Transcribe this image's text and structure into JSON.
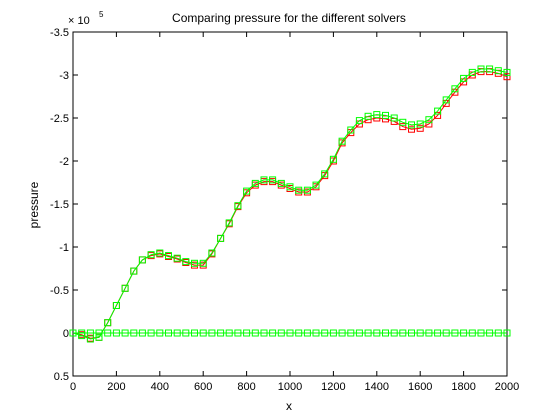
{
  "chart_data": {
    "type": "line",
    "title": "Comparing pressure for the different solvers",
    "xlabel": "x",
    "ylabel": "pressure",
    "xlim": [
      0,
      2000
    ],
    "ylim": [
      -3.5,
      0.5
    ],
    "y_reversed": true,
    "y_multiplier_label": "× 10",
    "y_multiplier_exponent": "5",
    "x_ticks": [
      0,
      200,
      400,
      600,
      800,
      1000,
      1200,
      1400,
      1600,
      1800,
      2000
    ],
    "x_tick_labels": [
      "0",
      "200",
      "400",
      "600",
      "800",
      "1000",
      "1200",
      "1400",
      "1600",
      "1800",
      "2000"
    ],
    "y_ticks": [
      -3.5,
      -3,
      -2.5,
      -2,
      -1.5,
      -1,
      -0.5,
      0,
      0.5
    ],
    "y_tick_labels": [
      "-3.5",
      "-3",
      "-2.5",
      "-2",
      "-1.5",
      "-1",
      "-0.5",
      "0",
      "0.5"
    ],
    "grid": false,
    "legend": "none",
    "colors": {
      "series_a": "#ff0000",
      "series_b": "#00ff00",
      "zero_line": "#00ff00",
      "axis": "#000000"
    },
    "series": [
      {
        "color": "#ff0000",
        "marker": "square",
        "x": [
          0,
          40,
          80,
          120,
          160,
          200,
          240,
          280,
          320,
          360,
          400,
          440,
          480,
          520,
          560,
          600,
          640,
          680,
          720,
          760,
          800,
          840,
          880,
          920,
          960,
          1000,
          1040,
          1080,
          1120,
          1160,
          1200,
          1240,
          1280,
          1320,
          1360,
          1400,
          1440,
          1480,
          1520,
          1560,
          1600,
          1640,
          1680,
          1720,
          1760,
          1800,
          1840,
          1880,
          1920,
          1960,
          2000
        ],
        "y": [
          0,
          0.02,
          0.06,
          0.05,
          -0.12,
          -0.32,
          -0.52,
          -0.72,
          -0.85,
          -0.9,
          -0.92,
          -0.89,
          -0.86,
          -0.82,
          -0.79,
          -0.79,
          -0.92,
          -1.1,
          -1.27,
          -1.47,
          -1.63,
          -1.72,
          -1.76,
          -1.76,
          -1.72,
          -1.68,
          -1.64,
          -1.64,
          -1.7,
          -1.83,
          -2.0,
          -2.21,
          -2.33,
          -2.43,
          -2.48,
          -2.5,
          -2.49,
          -2.46,
          -2.4,
          -2.37,
          -2.38,
          -2.43,
          -2.53,
          -2.67,
          -2.8,
          -2.92,
          -3.0,
          -3.04,
          -3.04,
          -3.02,
          -2.98
        ]
      },
      {
        "color": "#00ff00",
        "marker": "square",
        "x": [
          0,
          40,
          80,
          120,
          160,
          200,
          240,
          280,
          320,
          360,
          400,
          440,
          480,
          520,
          560,
          600,
          640,
          680,
          720,
          760,
          800,
          840,
          880,
          920,
          960,
          1000,
          1040,
          1080,
          1120,
          1160,
          1200,
          1240,
          1280,
          1320,
          1360,
          1400,
          1440,
          1480,
          1520,
          1560,
          1600,
          1640,
          1680,
          1720,
          1760,
          1800,
          1840,
          1880,
          1920,
          1960,
          2000
        ],
        "y": [
          0,
          0.03,
          0.07,
          0.05,
          -0.12,
          -0.32,
          -0.52,
          -0.72,
          -0.85,
          -0.91,
          -0.93,
          -0.9,
          -0.87,
          -0.83,
          -0.81,
          -0.81,
          -0.93,
          -1.1,
          -1.28,
          -1.48,
          -1.65,
          -1.74,
          -1.78,
          -1.78,
          -1.74,
          -1.7,
          -1.66,
          -1.66,
          -1.72,
          -1.85,
          -2.02,
          -2.23,
          -2.36,
          -2.47,
          -2.52,
          -2.54,
          -2.53,
          -2.5,
          -2.45,
          -2.42,
          -2.43,
          -2.48,
          -2.58,
          -2.71,
          -2.84,
          -2.96,
          -3.03,
          -3.07,
          -3.07,
          -3.05,
          -3.03
        ]
      },
      {
        "color": "#00ff00",
        "marker": "square",
        "x": [
          0,
          40,
          80,
          120,
          160,
          200,
          240,
          280,
          320,
          360,
          400,
          440,
          480,
          520,
          560,
          600,
          640,
          680,
          720,
          760,
          800,
          840,
          880,
          920,
          960,
          1000,
          1040,
          1080,
          1120,
          1160,
          1200,
          1240,
          1280,
          1320,
          1360,
          1400,
          1440,
          1480,
          1520,
          1560,
          1600,
          1640,
          1680,
          1720,
          1760,
          1800,
          1840,
          1880,
          1920,
          1960,
          2000
        ],
        "y": [
          0,
          0,
          0,
          0,
          0,
          0,
          0,
          0,
          0,
          0,
          0,
          0,
          0,
          0,
          0,
          0,
          0,
          0,
          0,
          0,
          0,
          0,
          0,
          0,
          0,
          0,
          0,
          0,
          0,
          0,
          0,
          0,
          0,
          0,
          0,
          0,
          0,
          0,
          0,
          0,
          0,
          0,
          0,
          0,
          0,
          0,
          0,
          0,
          0,
          0,
          0
        ]
      }
    ]
  }
}
